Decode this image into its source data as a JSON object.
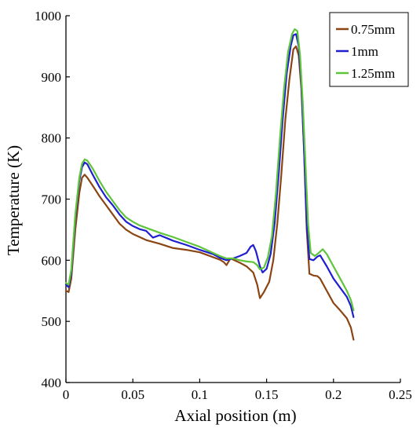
{
  "chart_data": {
    "type": "line",
    "title": "",
    "xlabel": "Axial position (m)",
    "ylabel": "Temperature (K)",
    "xlim": [
      0,
      0.25
    ],
    "ylim": [
      400,
      1000
    ],
    "x_ticks": [
      "0",
      "0.05",
      "0.1",
      "0.15",
      "0.2",
      "0.25"
    ],
    "y_ticks": [
      "400",
      "500",
      "600",
      "700",
      "800",
      "900",
      "1000"
    ],
    "grid": false,
    "legend_position": "top-right",
    "series": [
      {
        "name": "0.75mm",
        "color": "#8B4513",
        "points": [
          [
            0.0,
            550
          ],
          [
            0.002,
            548
          ],
          [
            0.004,
            570
          ],
          [
            0.007,
            650
          ],
          [
            0.01,
            710
          ],
          [
            0.012,
            735
          ],
          [
            0.014,
            740
          ],
          [
            0.016,
            735
          ],
          [
            0.02,
            722
          ],
          [
            0.025,
            705
          ],
          [
            0.03,
            690
          ],
          [
            0.035,
            675
          ],
          [
            0.04,
            660
          ],
          [
            0.045,
            650
          ],
          [
            0.05,
            643
          ],
          [
            0.055,
            638
          ],
          [
            0.06,
            633
          ],
          [
            0.07,
            627
          ],
          [
            0.08,
            620
          ],
          [
            0.09,
            617
          ],
          [
            0.1,
            613
          ],
          [
            0.11,
            605
          ],
          [
            0.115,
            601
          ],
          [
            0.118,
            597
          ],
          [
            0.12,
            592
          ],
          [
            0.123,
            603
          ],
          [
            0.126,
            600
          ],
          [
            0.13,
            596
          ],
          [
            0.135,
            590
          ],
          [
            0.14,
            580
          ],
          [
            0.143,
            560
          ],
          [
            0.145,
            538
          ],
          [
            0.148,
            548
          ],
          [
            0.152,
            565
          ],
          [
            0.155,
            600
          ],
          [
            0.158,
            660
          ],
          [
            0.161,
            740
          ],
          [
            0.164,
            830
          ],
          [
            0.167,
            895
          ],
          [
            0.17,
            945
          ],
          [
            0.172,
            950
          ],
          [
            0.174,
            935
          ],
          [
            0.176,
            880
          ],
          [
            0.178,
            780
          ],
          [
            0.18,
            650
          ],
          [
            0.182,
            578
          ],
          [
            0.185,
            575
          ],
          [
            0.188,
            574
          ],
          [
            0.19,
            570
          ],
          [
            0.195,
            550
          ],
          [
            0.2,
            530
          ],
          [
            0.205,
            518
          ],
          [
            0.21,
            505
          ],
          [
            0.213,
            490
          ],
          [
            0.215,
            470
          ]
        ]
      },
      {
        "name": "1mm",
        "color": "#1F1FD0",
        "points": [
          [
            0.0,
            560
          ],
          [
            0.002,
            556
          ],
          [
            0.004,
            580
          ],
          [
            0.007,
            670
          ],
          [
            0.01,
            730
          ],
          [
            0.012,
            752
          ],
          [
            0.014,
            760
          ],
          [
            0.016,
            757
          ],
          [
            0.02,
            740
          ],
          [
            0.025,
            720
          ],
          [
            0.03,
            703
          ],
          [
            0.035,
            690
          ],
          [
            0.04,
            675
          ],
          [
            0.045,
            663
          ],
          [
            0.05,
            656
          ],
          [
            0.055,
            651
          ],
          [
            0.06,
            648
          ],
          [
            0.065,
            637
          ],
          [
            0.07,
            641
          ],
          [
            0.08,
            632
          ],
          [
            0.09,
            625
          ],
          [
            0.1,
            617
          ],
          [
            0.11,
            610
          ],
          [
            0.115,
            604
          ],
          [
            0.12,
            600
          ],
          [
            0.125,
            603
          ],
          [
            0.13,
            607
          ],
          [
            0.135,
            612
          ],
          [
            0.138,
            622
          ],
          [
            0.14,
            625
          ],
          [
            0.142,
            615
          ],
          [
            0.145,
            590
          ],
          [
            0.147,
            580
          ],
          [
            0.15,
            586
          ],
          [
            0.153,
            610
          ],
          [
            0.156,
            660
          ],
          [
            0.159,
            740
          ],
          [
            0.162,
            830
          ],
          [
            0.165,
            905
          ],
          [
            0.168,
            950
          ],
          [
            0.17,
            968
          ],
          [
            0.172,
            970
          ],
          [
            0.174,
            950
          ],
          [
            0.176,
            890
          ],
          [
            0.178,
            780
          ],
          [
            0.18,
            660
          ],
          [
            0.182,
            602
          ],
          [
            0.185,
            600
          ],
          [
            0.188,
            606
          ],
          [
            0.19,
            608
          ],
          [
            0.195,
            590
          ],
          [
            0.2,
            570
          ],
          [
            0.205,
            555
          ],
          [
            0.21,
            540
          ],
          [
            0.213,
            525
          ],
          [
            0.215,
            507
          ]
        ]
      },
      {
        "name": "1.25mm",
        "color": "#5EC43A",
        "points": [
          [
            0.0,
            563
          ],
          [
            0.002,
            560
          ],
          [
            0.004,
            585
          ],
          [
            0.007,
            675
          ],
          [
            0.01,
            735
          ],
          [
            0.012,
            758
          ],
          [
            0.014,
            765
          ],
          [
            0.016,
            763
          ],
          [
            0.02,
            750
          ],
          [
            0.025,
            730
          ],
          [
            0.03,
            712
          ],
          [
            0.035,
            697
          ],
          [
            0.04,
            682
          ],
          [
            0.045,
            670
          ],
          [
            0.05,
            663
          ],
          [
            0.055,
            657
          ],
          [
            0.06,
            653
          ],
          [
            0.07,
            645
          ],
          [
            0.08,
            638
          ],
          [
            0.09,
            630
          ],
          [
            0.1,
            622
          ],
          [
            0.11,
            612
          ],
          [
            0.115,
            607
          ],
          [
            0.12,
            603
          ],
          [
            0.125,
            603
          ],
          [
            0.13,
            600
          ],
          [
            0.135,
            598
          ],
          [
            0.14,
            597
          ],
          [
            0.143,
            592
          ],
          [
            0.145,
            585
          ],
          [
            0.148,
            588
          ],
          [
            0.151,
            605
          ],
          [
            0.154,
            640
          ],
          [
            0.157,
            710
          ],
          [
            0.16,
            800
          ],
          [
            0.163,
            880
          ],
          [
            0.166,
            940
          ],
          [
            0.169,
            970
          ],
          [
            0.171,
            978
          ],
          [
            0.173,
            975
          ],
          [
            0.175,
            935
          ],
          [
            0.177,
            860
          ],
          [
            0.179,
            760
          ],
          [
            0.181,
            660
          ],
          [
            0.183,
            612
          ],
          [
            0.186,
            607
          ],
          [
            0.189,
            612
          ],
          [
            0.192,
            618
          ],
          [
            0.195,
            610
          ],
          [
            0.2,
            590
          ],
          [
            0.205,
            570
          ],
          [
            0.21,
            550
          ],
          [
            0.213,
            535
          ],
          [
            0.215,
            518
          ]
        ]
      }
    ]
  }
}
